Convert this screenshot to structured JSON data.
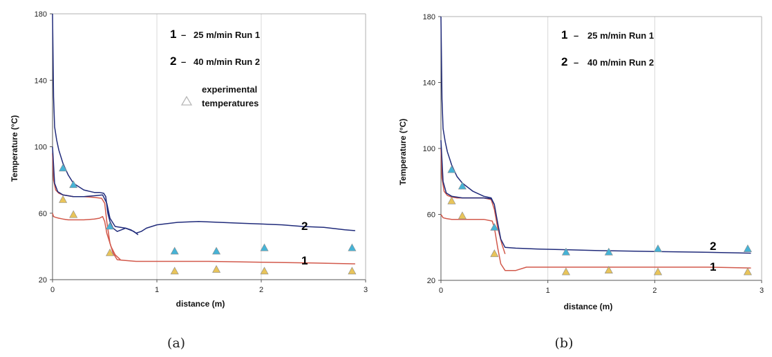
{
  "colors": {
    "run1_line": "#d2584a",
    "run2_line": "#1f2a7a",
    "exp_run1_marker": "#e8c45a",
    "exp_run2_marker": "#46b3d6",
    "legend_marker": "#c8c8c8",
    "grid": "#d8d8d8",
    "axes": "#555555"
  },
  "chart_data": [
    {
      "type": "line",
      "panel_caption": "(a)",
      "xlabel": "distance (m)",
      "ylabel": "Temperature (°C)",
      "xlim": [
        0,
        3
      ],
      "ylim": [
        20,
        180
      ],
      "xticks": [
        "0",
        "1",
        "2",
        "3"
      ],
      "yticks": [
        "20",
        "60",
        "100",
        "140",
        "180"
      ],
      "grid": "vertical",
      "legend": {
        "position": "top-right",
        "entries": [
          {
            "num": "1",
            "dash": "–",
            "text": "25 m/min  Run 1"
          },
          {
            "num": "2",
            "dash": "–",
            "text": "40 m/min  Run 2"
          }
        ],
        "marker_text_line1": "experimental",
        "marker_text_line2": "temperatures"
      },
      "curve_labels": [
        "1",
        "2"
      ],
      "series": [
        {
          "id": "1",
          "role": "run1",
          "x": [
            0,
            0.01,
            0.03,
            0.06,
            0.1,
            0.15,
            0.2,
            0.3,
            0.4,
            0.47,
            0.5,
            0.52,
            0.55,
            0.58,
            0.62,
            0.7,
            0.8,
            1.0,
            1.5,
            2.0,
            2.5,
            2.9
          ],
          "y": [
            96,
            80,
            74,
            72,
            71,
            70.5,
            70,
            70,
            69.5,
            69,
            66,
            55,
            42,
            36,
            32,
            31.5,
            31,
            31,
            31,
            30.5,
            30,
            29.5
          ]
        },
        {
          "id": "1b",
          "role": "run1",
          "x": [
            0,
            0.01,
            0.03,
            0.06,
            0.1,
            0.15,
            0.2,
            0.3,
            0.4,
            0.45,
            0.48,
            0.5,
            0.52,
            0.56,
            0.6,
            0.65
          ],
          "y": [
            60,
            58,
            57.5,
            57,
            56.5,
            56,
            56,
            56,
            56.5,
            57,
            58,
            55,
            48,
            40,
            35,
            32
          ]
        },
        {
          "id": "2",
          "role": "run2",
          "x": [
            0,
            0.01,
            0.02,
            0.04,
            0.06,
            0.1,
            0.15,
            0.2,
            0.3,
            0.4,
            0.45,
            0.49,
            0.51,
            0.53,
            0.55,
            0.58,
            0.62,
            0.66,
            0.7,
            0.75,
            0.8,
            0.85,
            0.9,
            1.0,
            1.2,
            1.4,
            1.6,
            1.8,
            2.0,
            2.2,
            2.4,
            2.6,
            2.8,
            2.9
          ],
          "y": [
            180,
            130,
            112,
            104,
            98,
            90,
            83,
            78,
            74,
            72.5,
            72.5,
            72,
            70,
            60,
            55,
            51,
            49,
            50,
            51,
            50,
            48,
            49,
            51,
            53,
            54.5,
            55,
            54.5,
            54,
            53.5,
            53,
            52,
            51.5,
            50,
            49.5
          ]
        },
        {
          "id": "2b",
          "role": "run2",
          "x": [
            0,
            0.02,
            0.05,
            0.1,
            0.15,
            0.2,
            0.3,
            0.4,
            0.48,
            0.52,
            0.55,
            0.6,
            0.7,
            0.78,
            0.82
          ],
          "y": [
            100,
            78,
            73,
            71,
            70.5,
            70,
            70,
            70.5,
            71,
            66,
            57,
            52,
            51,
            49,
            47
          ]
        }
      ],
      "experimental": [
        {
          "role": "run1",
          "x": [
            0.1,
            0.2,
            0.55,
            1.17,
            1.57,
            2.03,
            2.87
          ],
          "y": [
            68,
            59,
            36,
            25,
            26,
            25,
            25
          ]
        },
        {
          "role": "run2",
          "x": [
            0.1,
            0.2,
            0.55,
            1.17,
            1.57,
            2.03,
            2.87
          ],
          "y": [
            87,
            77,
            52,
            37,
            37,
            39,
            39
          ]
        }
      ]
    },
    {
      "type": "line",
      "panel_caption": "(b)",
      "xlabel": "distance (m)",
      "ylabel": "Temperature (°C)",
      "xlim": [
        0,
        3
      ],
      "ylim": [
        20,
        180
      ],
      "xticks": [
        "0",
        "1",
        "2",
        "3"
      ],
      "yticks": [
        "20",
        "60",
        "100",
        "140",
        "180"
      ],
      "grid": "vertical",
      "legend": {
        "position": "top-right",
        "entries": [
          {
            "num": "1",
            "dash": "–",
            "text": "25 m/min  Run 1"
          },
          {
            "num": "2",
            "dash": "–",
            "text": "40 m/min  Run 2"
          }
        ]
      },
      "curve_labels": [
        "1",
        "2"
      ],
      "series": [
        {
          "id": "1",
          "role": "run1",
          "x": [
            0,
            0.02,
            0.05,
            0.1,
            0.15,
            0.2,
            0.3,
            0.4,
            0.48,
            0.5,
            0.53,
            0.56,
            0.6,
            0.7,
            0.8,
            1.0,
            1.5,
            2.0,
            2.5,
            2.9
          ],
          "y": [
            60,
            58,
            57.5,
            57,
            57,
            57,
            57,
            57,
            56,
            52,
            40,
            30,
            26,
            26,
            28,
            28,
            28,
            28,
            28,
            27.5
          ]
        },
        {
          "id": "1b",
          "role": "run1",
          "x": [
            0,
            0.01,
            0.03,
            0.06,
            0.1,
            0.15,
            0.2,
            0.3,
            0.4,
            0.47,
            0.5,
            0.53,
            0.57,
            0.6
          ],
          "y": [
            100,
            82,
            74,
            71.5,
            70.5,
            70,
            70,
            70,
            70,
            69,
            63,
            52,
            42,
            36
          ]
        },
        {
          "id": "2",
          "role": "run2",
          "x": [
            0,
            0.01,
            0.02,
            0.04,
            0.06,
            0.1,
            0.15,
            0.2,
            0.3,
            0.4,
            0.47,
            0.5,
            0.53,
            0.56,
            0.6,
            0.7,
            0.9,
            1.2,
            1.5,
            2.0,
            2.5,
            2.9
          ],
          "y": [
            180,
            130,
            112,
            104,
            98,
            90,
            83,
            79,
            74,
            71,
            70,
            66,
            55,
            45,
            40,
            39.5,
            39,
            38.5,
            38,
            37.5,
            37,
            36.5
          ]
        },
        {
          "id": "2b",
          "role": "run2",
          "x": [
            0,
            0.02,
            0.05,
            0.1,
            0.2,
            0.3,
            0.4,
            0.47,
            0.5
          ],
          "y": [
            105,
            80,
            73,
            71,
            70,
            70,
            70,
            69.5,
            66
          ]
        }
      ],
      "experimental": [
        {
          "role": "run1",
          "x": [
            0.1,
            0.2,
            0.5,
            1.17,
            1.57,
            2.03,
            2.87
          ],
          "y": [
            68,
            59,
            36,
            25,
            26,
            25,
            25
          ]
        },
        {
          "role": "run2",
          "x": [
            0.1,
            0.2,
            0.5,
            1.17,
            1.57,
            2.03,
            2.87
          ],
          "y": [
            87,
            77,
            52,
            37,
            37,
            39,
            39
          ]
        }
      ]
    }
  ]
}
